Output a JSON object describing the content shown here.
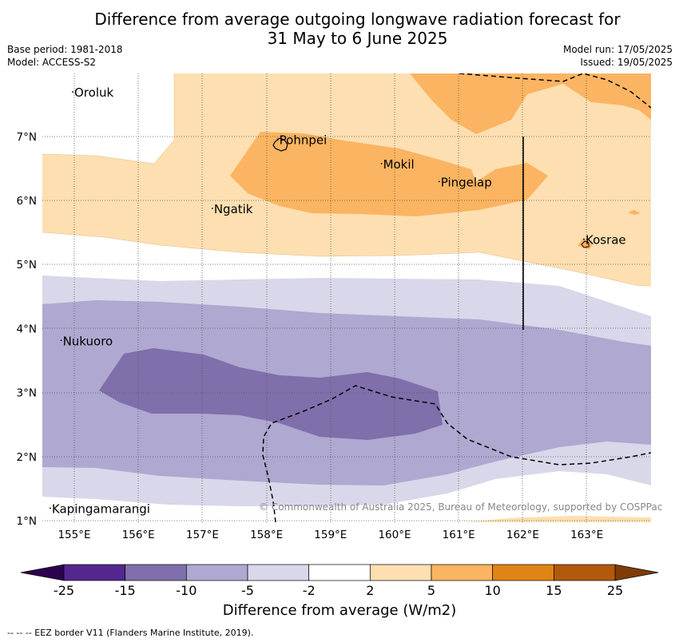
{
  "title_line1": "Difference from average outgoing longwave radiation forecast for",
  "title_line2": "31 May to 6 June 2025",
  "meta_left": [
    "Base period: 1981-2018",
    "Model: ACCESS-S2"
  ],
  "meta_right": [
    "Model run: 17/05/2025",
    "Issued: 19/05/2025"
  ],
  "lon_ticks": [
    "155°E",
    "156°E",
    "157°E",
    "158°E",
    "159°E",
    "160°E",
    "161°E",
    "162°E",
    "163°E"
  ],
  "lat_ticks": [
    "7°N",
    "6°N",
    "5°N",
    "4°N",
    "3°N",
    "2°N",
    "1°N"
  ],
  "places": [
    {
      "name": "Oroluk",
      "lon": 155.0,
      "lat": 7.62
    },
    {
      "name": "Pohnpei",
      "lon": 158.2,
      "lat": 6.88
    },
    {
      "name": "Mokil",
      "lon": 159.82,
      "lat": 6.5
    },
    {
      "name": "Pingelap",
      "lon": 160.72,
      "lat": 6.22
    },
    {
      "name": "Ngatik",
      "lon": 157.18,
      "lat": 5.8
    },
    {
      "name": "Kosrae",
      "lon": 162.98,
      "lat": 5.32
    },
    {
      "name": "Nukuoro",
      "lon": 154.82,
      "lat": 3.74
    },
    {
      "name": "Kapingamarangi",
      "lon": 154.65,
      "lat": 1.12
    }
  ],
  "colorbar": {
    "ticks": [
      "-25",
      "-15",
      "-10",
      "-5",
      "-2",
      "2",
      "5",
      "10",
      "15",
      "25"
    ],
    "colors": [
      "#54278f",
      "#7f6fab",
      "#afa8d0",
      "#d8d8ea",
      "#ffffff",
      "#fddfb1",
      "#fbb461",
      "#e08414",
      "#b2590b"
    ],
    "under_color": "#2d0050",
    "over_color": "#7f3b08",
    "label": "Difference from average (W/m2)"
  },
  "credit": "© Commonwealth of Australia 2025, Bureau of Meteorology, supported by COSPPac",
  "eez_note": "--  --  -- EEZ border V11 (Flanders Marine Institute, 2019)."
}
